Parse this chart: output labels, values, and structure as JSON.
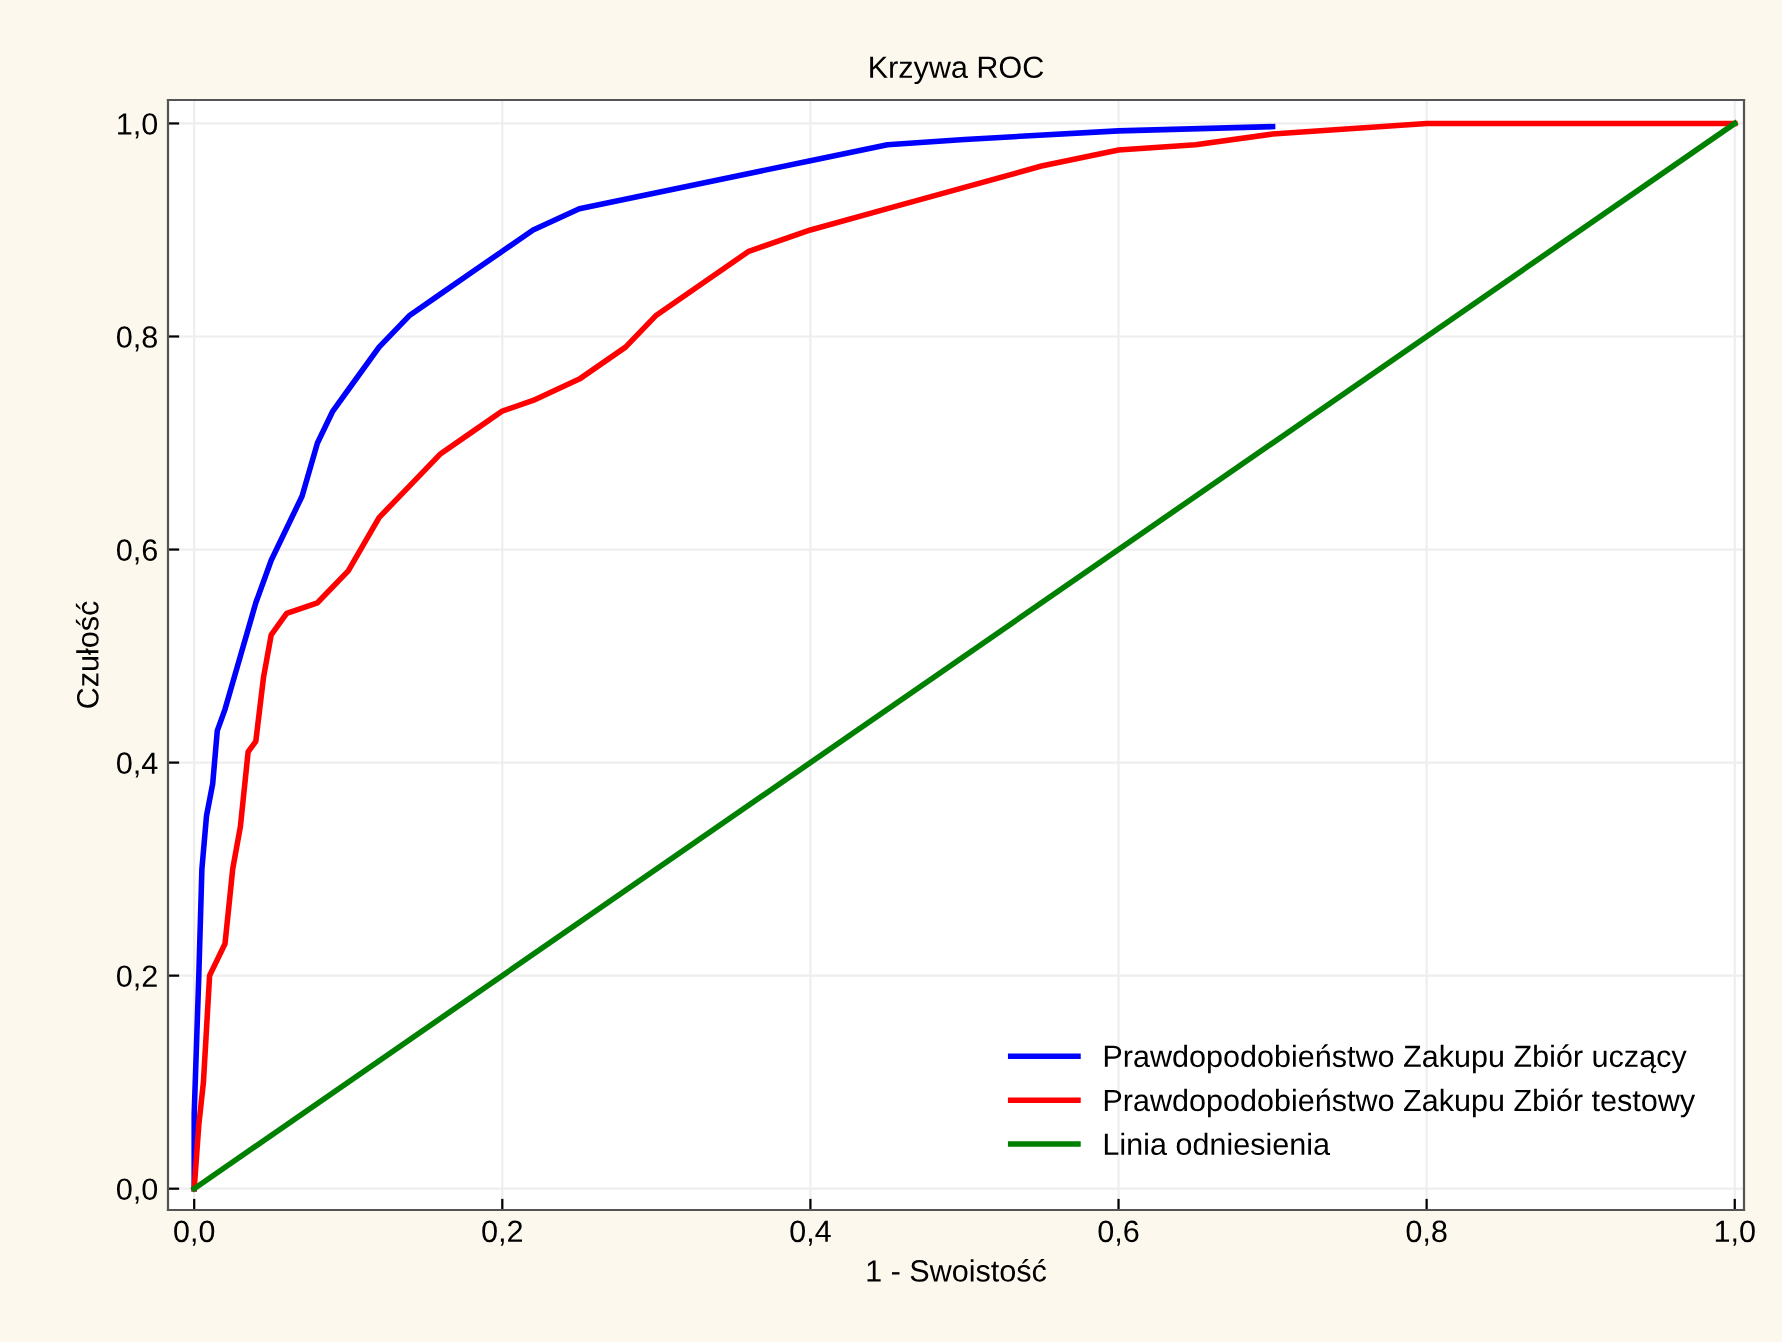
{
  "chart_data": {
    "type": "line",
    "title": "Krzywa ROC",
    "xlabel": "1 - Swoistość",
    "ylabel": "Czułość",
    "xlim": [
      -0.017,
      1.006
    ],
    "ylim": [
      -0.02,
      1.022
    ],
    "xticks": [
      {
        "value": 0,
        "label": "0,0"
      },
      {
        "value": 0.2,
        "label": "0,2"
      },
      {
        "value": 0.4,
        "label": "0,4"
      },
      {
        "value": 0.6,
        "label": "0,6"
      },
      {
        "value": 0.8,
        "label": "0,8"
      },
      {
        "value": 1,
        "label": "1,0"
      }
    ],
    "yticks": [
      {
        "value": 0,
        "label": "0,0"
      },
      {
        "value": 0.2,
        "label": "0,2"
      },
      {
        "value": 0.4,
        "label": "0,4"
      },
      {
        "value": 0.6,
        "label": "0,6"
      },
      {
        "value": 0.8,
        "label": "0,8"
      },
      {
        "value": 1,
        "label": "1,0"
      }
    ],
    "grid": true,
    "legend": "bottom right",
    "series": [
      {
        "name": "Prawdopodobieństwo Zakupu Zbiór uczący",
        "color": "#0000ff",
        "x": [
          0,
          0,
          0.003,
          0.005,
          0.008,
          0.012,
          0.015,
          0.02,
          0.03,
          0.04,
          0.05,
          0.06,
          0.07,
          0.08,
          0.09,
          0.1,
          0.12,
          0.14,
          0.16,
          0.18,
          0.2,
          0.22,
          0.25,
          0.3,
          0.35,
          0.4,
          0.45,
          0.5,
          0.6,
          0.7
        ],
        "values": [
          0,
          0.07,
          0.2,
          0.3,
          0.35,
          0.38,
          0.43,
          0.45,
          0.5,
          0.55,
          0.59,
          0.62,
          0.65,
          0.7,
          0.73,
          0.75,
          0.79,
          0.82,
          0.84,
          0.86,
          0.88,
          0.9,
          0.92,
          0.935,
          0.95,
          0.965,
          0.98,
          0.985,
          0.993,
          0.997
        ]
      },
      {
        "name": "Prawdopodobieństwo Zakupu Zbiór testowy",
        "color": "#ff0000",
        "x": [
          0,
          0.003,
          0.006,
          0.01,
          0.02,
          0.025,
          0.03,
          0.035,
          0.04,
          0.045,
          0.05,
          0.06,
          0.08,
          0.1,
          0.12,
          0.14,
          0.16,
          0.18,
          0.2,
          0.22,
          0.25,
          0.28,
          0.3,
          0.33,
          0.36,
          0.4,
          0.45,
          0.5,
          0.55,
          0.6,
          0.65,
          0.7,
          0.75,
          0.8,
          1.0
        ],
        "values": [
          0,
          0.06,
          0.1,
          0.2,
          0.23,
          0.3,
          0.34,
          0.41,
          0.42,
          0.48,
          0.52,
          0.54,
          0.55,
          0.58,
          0.63,
          0.66,
          0.69,
          0.71,
          0.73,
          0.74,
          0.76,
          0.79,
          0.82,
          0.85,
          0.88,
          0.9,
          0.92,
          0.94,
          0.96,
          0.975,
          0.98,
          0.99,
          0.995,
          1.0,
          1.0
        ]
      },
      {
        "name": "Linia odniesienia",
        "color": "#008000",
        "x": [
          0,
          1
        ],
        "values": [
          0,
          1
        ]
      }
    ]
  }
}
